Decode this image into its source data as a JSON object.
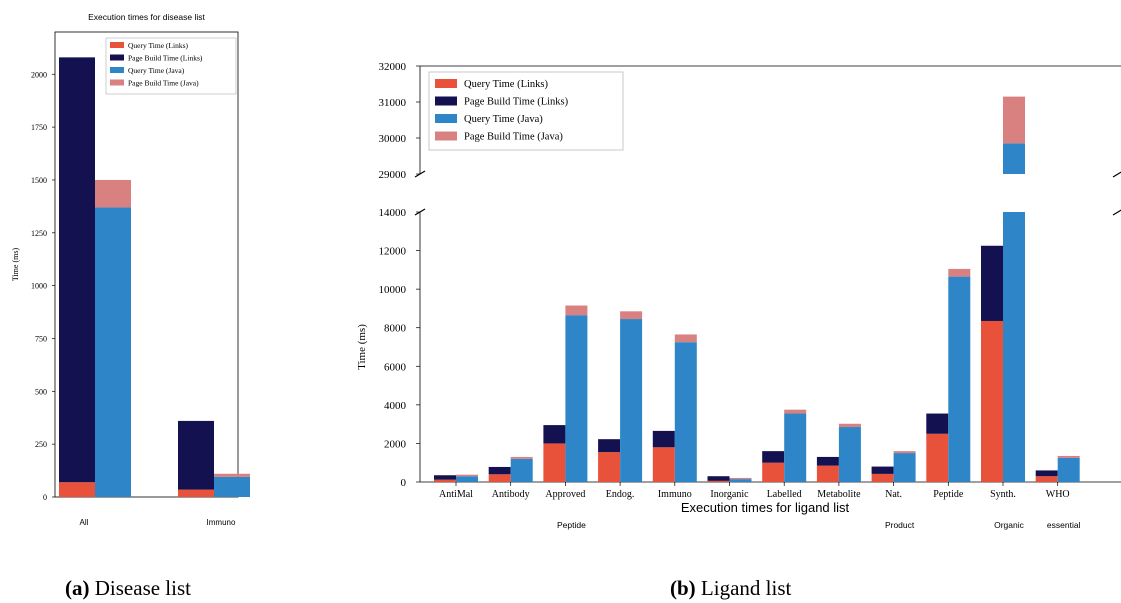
{
  "colors": {
    "query_links": "#e8523a",
    "build_links": "#141150",
    "query_java": "#2e86c8",
    "build_java": "#d98080"
  },
  "captions": {
    "a": {
      "letter": "(a)",
      "text": "Disease list"
    },
    "b": {
      "letter": "(b)",
      "text": "Ligand list"
    }
  },
  "chart_data": [
    {
      "id": "a",
      "type": "bar",
      "stacked": true,
      "title": "Execution times for disease list",
      "xlabel": "",
      "ylabel": "Time (ms)",
      "ylim": [
        0,
        2200
      ],
      "yticks": [
        0,
        250,
        500,
        750,
        1000,
        1250,
        1500,
        1750,
        2000
      ],
      "categories": [
        "All",
        "Immuno"
      ],
      "legend_position": "top-right",
      "groups": [
        {
          "name": "Links",
          "series": [
            {
              "name": "Query Time (Links)",
              "color": "#e8523a",
              "values": [
                70,
                35
              ]
            },
            {
              "name": "Page Build Time (Links)",
              "color": "#141150",
              "values": [
                2010,
                325
              ]
            }
          ]
        },
        {
          "name": "Java",
          "series": [
            {
              "name": "Query Time (Java)",
              "color": "#2e86c8",
              "values": [
                1370,
                95
              ]
            },
            {
              "name": "Page Build Time (Java)",
              "color": "#d98080",
              "values": [
                130,
                15
              ]
            }
          ]
        }
      ]
    },
    {
      "id": "b",
      "type": "bar",
      "stacked": true,
      "title": "",
      "xlabel": "Execution times for ligand list",
      "ylabel": "Time (ms)",
      "broken_axis": true,
      "ylim_lower": [
        0,
        14000
      ],
      "ylim_upper": [
        29000,
        32000
      ],
      "yticks_lower": [
        0,
        2000,
        4000,
        6000,
        8000,
        10000,
        12000,
        14000
      ],
      "yticks_upper": [
        29000,
        30000,
        31000,
        32000
      ],
      "categories": [
        "AntiMal",
        "Antibody",
        "Approved",
        "Endog.",
        "Immuno",
        "Inorganic",
        "Labelled",
        "Metabolite",
        "Nat.",
        "Peptide",
        "Synth.",
        "WHO"
      ],
      "category_second_lines": [
        "",
        "",
        "Peptide",
        "",
        "",
        "",
        "",
        "",
        "Product",
        "",
        "Organic",
        "essential"
      ],
      "legend_position": "top-left",
      "groups": [
        {
          "name": "Links",
          "series": [
            {
              "name": "Query Time (Links)",
              "color": "#e8523a",
              "values": [
                120,
                400,
                2000,
                1550,
                1800,
                60,
                1000,
                850,
                420,
                2500,
                8350,
                300
              ]
            },
            {
              "name": "Page Build Time (Links)",
              "color": "#141150",
              "values": [
                230,
                380,
                950,
                670,
                850,
                240,
                600,
                450,
                380,
                1050,
                3900,
                300
              ]
            }
          ]
        },
        {
          "name": "Java",
          "series": [
            {
              "name": "Query Time (Java)",
              "color": "#2e86c8",
              "values": [
                300,
                1200,
                8650,
                8450,
                7250,
                150,
                3550,
                2850,
                1500,
                10650,
                29850,
                1250
              ]
            },
            {
              "name": "Page Build Time (Java)",
              "color": "#d98080",
              "values": [
                80,
                100,
                500,
                400,
                400,
                60,
                200,
                170,
                100,
                400,
                1300,
                100
              ]
            }
          ]
        }
      ]
    }
  ]
}
